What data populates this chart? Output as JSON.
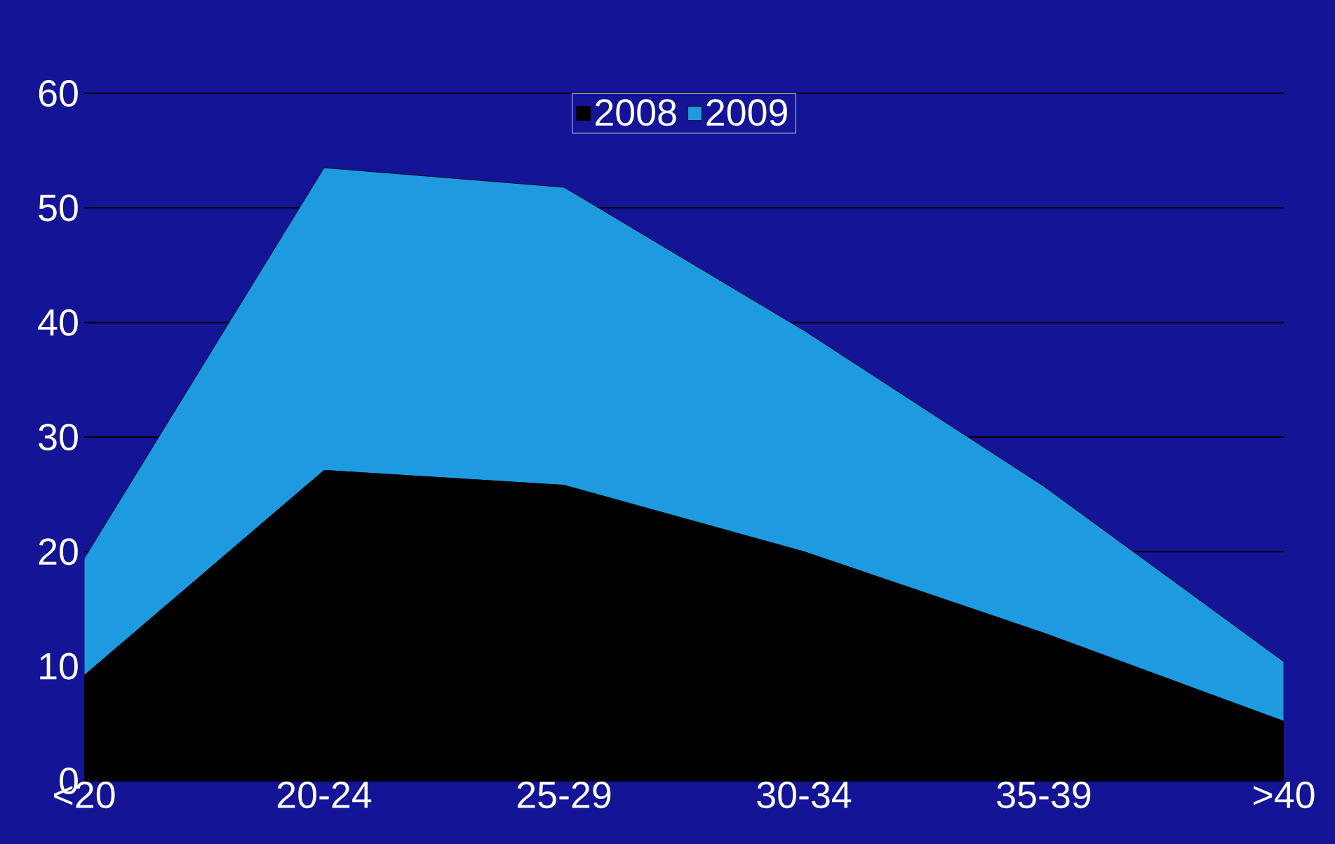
{
  "chart_data": {
    "type": "area",
    "stacked": true,
    "categories": [
      "<20",
      "20-24",
      "25-29",
      "30-34",
      "35-39",
      ">40"
    ],
    "series": [
      {
        "name": "2008",
        "color": "#000000",
        "values": [
          9.2,
          27.1,
          25.8,
          20.0,
          12.9,
          5.2
        ]
      },
      {
        "name": "2009",
        "color": "#1e9be0",
        "values": [
          10.2,
          26.4,
          26.0,
          19.3,
          12.8,
          5.2
        ]
      }
    ],
    "ylim": [
      0,
      60
    ],
    "yticks": [
      0,
      10,
      20,
      30,
      40,
      50,
      60
    ],
    "grid": "y",
    "legend": "top"
  }
}
